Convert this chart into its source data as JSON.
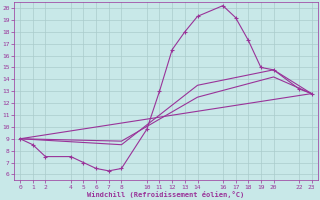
{
  "xlabel": "Windchill (Refroidissement éolien,°C)",
  "background_color": "#c8e8e8",
  "line_color": "#993399",
  "grid_color": "#aacccc",
  "xlim": [
    -0.5,
    23.5
  ],
  "ylim": [
    5.5,
    20.5
  ],
  "xticks": [
    0,
    1,
    2,
    4,
    5,
    6,
    7,
    8,
    10,
    11,
    12,
    13,
    14,
    16,
    17,
    18,
    19,
    20,
    22,
    23
  ],
  "yticks": [
    6,
    7,
    8,
    9,
    10,
    11,
    12,
    13,
    14,
    15,
    16,
    17,
    18,
    19,
    20
  ],
  "series1_x": [
    0,
    1,
    2,
    4,
    5,
    6,
    7,
    8,
    10,
    11,
    12,
    13,
    14,
    16,
    17,
    18,
    19,
    20,
    22,
    23
  ],
  "series1_y": [
    9.0,
    8.5,
    7.5,
    7.5,
    7.0,
    6.5,
    6.3,
    6.5,
    9.8,
    13.0,
    16.5,
    18.0,
    19.3,
    20.2,
    19.2,
    17.3,
    15.0,
    14.8,
    13.2,
    12.8
  ],
  "series2_x": [
    0,
    23
  ],
  "series2_y": [
    9.0,
    12.8
  ],
  "series3_x": [
    0,
    8,
    14,
    20,
    23
  ],
  "series3_y": [
    9.0,
    8.5,
    13.5,
    14.8,
    12.8
  ],
  "series4_x": [
    0,
    8,
    14,
    20,
    23
  ],
  "series4_y": [
    9.0,
    8.8,
    12.5,
    14.2,
    12.8
  ]
}
